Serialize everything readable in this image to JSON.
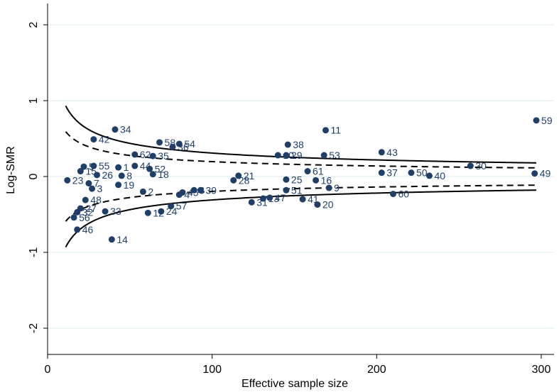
{
  "chart_data": {
    "type": "scatter",
    "title": "",
    "xlabel": "Effective sample size",
    "ylabel": "Log-SMR",
    "xlim": [
      0,
      300
    ],
    "ylim": [
      -2.3,
      2.3
    ],
    "xticks": [
      0,
      100,
      200,
      300
    ],
    "yticks": [
      -2,
      -1,
      0,
      1,
      2
    ],
    "grid": "horizontal",
    "legend": "none",
    "colors": {
      "point": "#1f3f68",
      "label": "#1f3f68",
      "grid": "#d9ebea",
      "line": "#000000"
    },
    "points": [
      {
        "label": "59",
        "x": 297,
        "y": 0.74
      },
      {
        "label": "49",
        "x": 296,
        "y": 0.04
      },
      {
        "label": "30",
        "x": 257,
        "y": 0.14
      },
      {
        "label": "40",
        "x": 232,
        "y": 0.01
      },
      {
        "label": "50",
        "x": 221,
        "y": 0.05
      },
      {
        "label": "60",
        "x": 210,
        "y": -0.23
      },
      {
        "label": "37",
        "x": 203,
        "y": 0.05
      },
      {
        "label": "43",
        "x": 203,
        "y": 0.32
      },
      {
        "label": "11",
        "x": 169,
        "y": 0.61
      },
      {
        "label": "53",
        "x": 168,
        "y": 0.28
      },
      {
        "label": "9",
        "x": 171,
        "y": -0.15
      },
      {
        "label": "20",
        "x": 164,
        "y": -0.37
      },
      {
        "label": "16",
        "x": 163,
        "y": -0.05
      },
      {
        "label": "61",
        "x": 158,
        "y": 0.07
      },
      {
        "label": "41",
        "x": 155,
        "y": -0.3
      },
      {
        "label": "38",
        "x": 146,
        "y": 0.42
      },
      {
        "label": "29",
        "x": 145,
        "y": 0.28
      },
      {
        "label": "25",
        "x": 145,
        "y": -0.04
      },
      {
        "label": "51",
        "x": 145,
        "y": -0.18
      },
      {
        "label": "47",
        "x": 135,
        "y": -0.28
      },
      {
        "label": "10",
        "x": 140,
        "y": 0.28
      },
      {
        "label": "31",
        "x": 124,
        "y": -0.34
      },
      {
        "label": "21",
        "x": 116,
        "y": 0.01
      },
      {
        "label": "28",
        "x": 113,
        "y": -0.05
      },
      {
        "label": "13",
        "x": 131,
        "y": -0.29
      },
      {
        "label": "3",
        "x": 89,
        "y": -0.18
      },
      {
        "label": "39",
        "x": 93,
        "y": -0.18
      },
      {
        "label": "45",
        "x": 82,
        "y": -0.21
      },
      {
        "label": "57",
        "x": 75,
        "y": -0.39
      },
      {
        "label": "24",
        "x": 69,
        "y": -0.46
      },
      {
        "label": "4",
        "x": 80,
        "y": -0.24
      },
      {
        "label": "54",
        "x": 80,
        "y": 0.43
      },
      {
        "label": "36",
        "x": 76,
        "y": 0.39
      },
      {
        "label": "58",
        "x": 68,
        "y": 0.45
      },
      {
        "label": "35",
        "x": 64,
        "y": 0.27
      },
      {
        "label": "18",
        "x": 64,
        "y": 0.03
      },
      {
        "label": "52",
        "x": 62,
        "y": 0.1
      },
      {
        "label": "62",
        "x": 53,
        "y": 0.29
      },
      {
        "label": "44",
        "x": 53,
        "y": 0.14
      },
      {
        "label": "2",
        "x": 58,
        "y": -0.2
      },
      {
        "label": "1",
        "x": 43,
        "y": 0.12
      },
      {
        "label": "8",
        "x": 45,
        "y": 0.01
      },
      {
        "label": "19",
        "x": 43,
        "y": -0.11
      },
      {
        "label": "34",
        "x": 41,
        "y": 0.62
      },
      {
        "label": "42",
        "x": 28,
        "y": 0.49
      },
      {
        "label": "55",
        "x": 28,
        "y": 0.14
      },
      {
        "label": "26",
        "x": 30,
        "y": 0.02
      },
      {
        "label": "7",
        "x": 25,
        "y": -0.09
      },
      {
        "label": "3",
        "x": 27,
        "y": -0.16
      },
      {
        "label": "48",
        "x": 23,
        "y": -0.31
      },
      {
        "label": "27",
        "x": 20,
        "y": -0.42
      },
      {
        "label": "32",
        "x": 18,
        "y": -0.47
      },
      {
        "label": "56",
        "x": 16,
        "y": -0.54
      },
      {
        "label": "46",
        "x": 18,
        "y": -0.7
      },
      {
        "label": "33",
        "x": 35,
        "y": -0.46
      },
      {
        "label": "14",
        "x": 39,
        "y": -0.83
      },
      {
        "label": "23",
        "x": 12,
        "y": -0.05
      },
      {
        "label": "5",
        "x": 22,
        "y": 0.13
      },
      {
        "label": "15",
        "x": 20,
        "y": 0.07
      },
      {
        "label": "12",
        "x": 61,
        "y": -0.48
      }
    ],
    "lines": [
      {
        "name": "",
        "style": "solid",
        "z": 3.09
      },
      {
        "name": "",
        "style": "dashed",
        "z": 1.96
      }
    ],
    "curve_range": [
      11,
      297
    ]
  }
}
